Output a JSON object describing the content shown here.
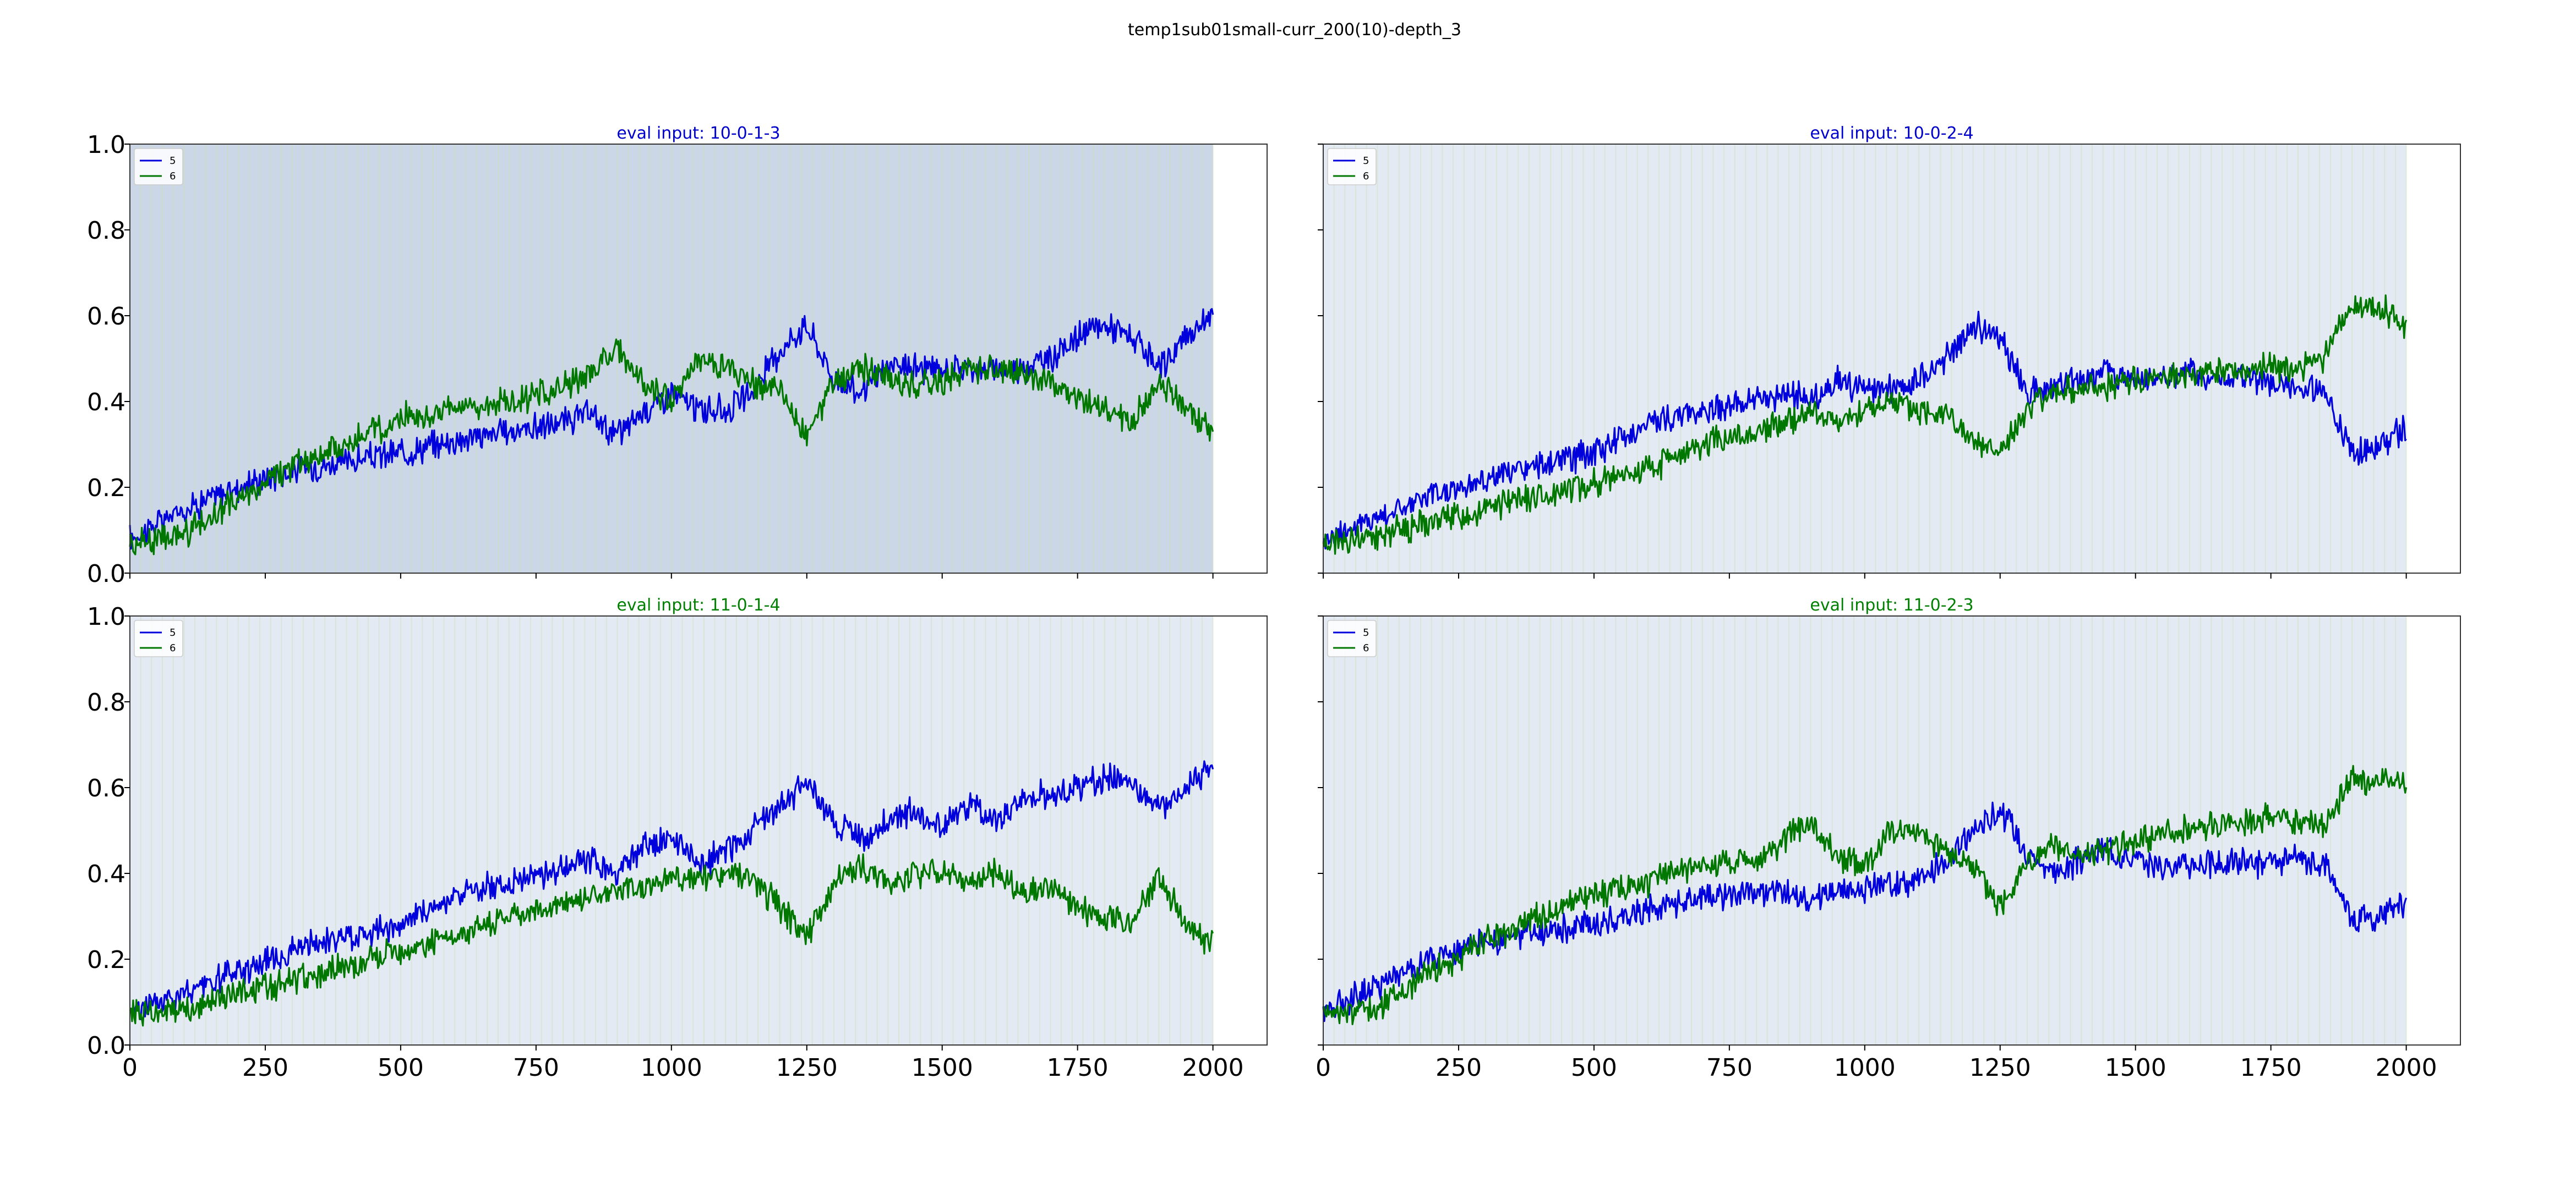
{
  "figure": {
    "title": "temp1sub01small-curr_200(10)-depth_3"
  },
  "colors": {
    "series_5": "#0000dd",
    "series_6": "#007700",
    "title_blue": "#0000cc",
    "title_green": "#008000",
    "shade_light": "#e4eaf4",
    "shade_dark": "#cbd7e6",
    "stripe": "#cce0b8",
    "axis": "#000000"
  },
  "chart_data": [
    {
      "type": "line",
      "title": "eval input: 10-0-1-3",
      "title_color": "#0000cc",
      "shading": "dark",
      "xlim": [
        0,
        2100
      ],
      "ylim": [
        0,
        1.0
      ],
      "xticks": [
        0,
        250,
        500,
        750,
        1000,
        1250,
        1500,
        1750,
        2000
      ],
      "yticks": [
        0.0,
        0.2,
        0.4,
        0.6,
        0.8,
        1.0
      ],
      "show_xticklabels": false,
      "show_yticklabels": true,
      "legend": "top-left",
      "x": [
        0,
        100,
        200,
        300,
        400,
        500,
        600,
        700,
        800,
        850,
        900,
        950,
        1000,
        1050,
        1100,
        1150,
        1200,
        1250,
        1300,
        1350,
        1400,
        1450,
        1500,
        1550,
        1600,
        1650,
        1700,
        1750,
        1800,
        1850,
        1900,
        1950,
        2000
      ],
      "series": [
        {
          "name": "5",
          "color": "#0000dd",
          "values": [
            0.08,
            0.15,
            0.2,
            0.24,
            0.26,
            0.28,
            0.31,
            0.33,
            0.35,
            0.37,
            0.32,
            0.38,
            0.42,
            0.38,
            0.38,
            0.42,
            0.52,
            0.58,
            0.45,
            0.42,
            0.48,
            0.48,
            0.47,
            0.48,
            0.47,
            0.48,
            0.5,
            0.55,
            0.58,
            0.55,
            0.47,
            0.55,
            0.6
          ]
        },
        {
          "name": "6",
          "color": "#007700",
          "values": [
            0.07,
            0.09,
            0.17,
            0.25,
            0.3,
            0.36,
            0.38,
            0.4,
            0.43,
            0.47,
            0.52,
            0.44,
            0.4,
            0.5,
            0.48,
            0.44,
            0.42,
            0.32,
            0.44,
            0.48,
            0.45,
            0.44,
            0.45,
            0.48,
            0.47,
            0.46,
            0.45,
            0.4,
            0.38,
            0.35,
            0.45,
            0.38,
            0.34
          ]
        }
      ]
    },
    {
      "type": "line",
      "title": "eval input: 10-0-2-4",
      "title_color": "#0000cc",
      "shading": "light",
      "xlim": [
        0,
        2100
      ],
      "ylim": [
        0,
        1.0
      ],
      "xticks": [
        0,
        250,
        500,
        750,
        1000,
        1250,
        1500,
        1750,
        2000
      ],
      "yticks": [
        0.0,
        0.2,
        0.4,
        0.6,
        0.8,
        1.0
      ],
      "show_xticklabels": false,
      "show_yticklabels": false,
      "legend": "top-left",
      "x": [
        0,
        100,
        200,
        300,
        400,
        500,
        600,
        700,
        800,
        850,
        900,
        950,
        1000,
        1050,
        1100,
        1150,
        1200,
        1250,
        1300,
        1350,
        1400,
        1450,
        1500,
        1550,
        1600,
        1650,
        1700,
        1750,
        1800,
        1850,
        1900,
        1950,
        2000
      ],
      "series": [
        {
          "name": "5",
          "color": "#0000dd",
          "values": [
            0.08,
            0.13,
            0.18,
            0.22,
            0.25,
            0.28,
            0.35,
            0.38,
            0.4,
            0.42,
            0.4,
            0.45,
            0.42,
            0.43,
            0.45,
            0.5,
            0.58,
            0.55,
            0.42,
            0.44,
            0.45,
            0.47,
            0.46,
            0.45,
            0.47,
            0.45,
            0.46,
            0.44,
            0.44,
            0.42,
            0.28,
            0.3,
            0.34
          ]
        },
        {
          "name": "6",
          "color": "#007700",
          "values": [
            0.07,
            0.09,
            0.12,
            0.15,
            0.18,
            0.21,
            0.24,
            0.3,
            0.33,
            0.35,
            0.38,
            0.35,
            0.38,
            0.4,
            0.38,
            0.38,
            0.3,
            0.28,
            0.38,
            0.42,
            0.43,
            0.44,
            0.45,
            0.46,
            0.46,
            0.47,
            0.47,
            0.48,
            0.48,
            0.5,
            0.62,
            0.62,
            0.58
          ]
        }
      ]
    },
    {
      "type": "line",
      "title": "eval input: 11-0-1-4",
      "title_color": "#008000",
      "shading": "light",
      "xlim": [
        0,
        2100
      ],
      "ylim": [
        0,
        1.0
      ],
      "xticks": [
        0,
        250,
        500,
        750,
        1000,
        1250,
        1500,
        1750,
        2000
      ],
      "yticks": [
        0.0,
        0.2,
        0.4,
        0.6,
        0.8,
        1.0
      ],
      "show_xticklabels": true,
      "show_yticklabels": true,
      "legend": "top-left",
      "x": [
        0,
        100,
        200,
        300,
        400,
        500,
        600,
        700,
        800,
        850,
        900,
        950,
        1000,
        1050,
        1100,
        1150,
        1200,
        1250,
        1300,
        1350,
        1400,
        1450,
        1500,
        1550,
        1600,
        1650,
        1700,
        1750,
        1800,
        1850,
        1900,
        1950,
        2000
      ],
      "series": [
        {
          "name": "5",
          "color": "#0000dd",
          "values": [
            0.08,
            0.12,
            0.17,
            0.22,
            0.25,
            0.28,
            0.35,
            0.38,
            0.41,
            0.43,
            0.4,
            0.46,
            0.48,
            0.42,
            0.45,
            0.5,
            0.55,
            0.62,
            0.52,
            0.48,
            0.52,
            0.55,
            0.5,
            0.56,
            0.52,
            0.58,
            0.58,
            0.6,
            0.62,
            0.62,
            0.55,
            0.6,
            0.65
          ]
        },
        {
          "name": "6",
          "color": "#007700",
          "values": [
            0.07,
            0.08,
            0.12,
            0.15,
            0.18,
            0.22,
            0.25,
            0.3,
            0.33,
            0.35,
            0.36,
            0.37,
            0.4,
            0.38,
            0.4,
            0.38,
            0.32,
            0.25,
            0.38,
            0.42,
            0.38,
            0.4,
            0.4,
            0.38,
            0.4,
            0.36,
            0.36,
            0.32,
            0.3,
            0.28,
            0.4,
            0.28,
            0.23
          ]
        }
      ]
    },
    {
      "type": "line",
      "title": "eval input: 11-0-2-3",
      "title_color": "#008000",
      "shading": "light",
      "xlim": [
        0,
        2100
      ],
      "ylim": [
        0,
        1.0
      ],
      "xticks": [
        0,
        250,
        500,
        750,
        1000,
        1250,
        1500,
        1750,
        2000
      ],
      "yticks": [
        0.0,
        0.2,
        0.4,
        0.6,
        0.8,
        1.0
      ],
      "show_xticklabels": true,
      "show_yticklabels": false,
      "legend": "top-left",
      "x": [
        0,
        100,
        200,
        300,
        400,
        500,
        600,
        700,
        800,
        850,
        900,
        950,
        1000,
        1050,
        1100,
        1150,
        1200,
        1250,
        1300,
        1350,
        1400,
        1450,
        1500,
        1550,
        1600,
        1650,
        1700,
        1750,
        1800,
        1850,
        1900,
        1950,
        2000
      ],
      "series": [
        {
          "name": "5",
          "color": "#0000dd",
          "values": [
            0.08,
            0.14,
            0.2,
            0.24,
            0.26,
            0.28,
            0.32,
            0.34,
            0.36,
            0.35,
            0.33,
            0.37,
            0.36,
            0.38,
            0.38,
            0.43,
            0.5,
            0.55,
            0.45,
            0.4,
            0.43,
            0.46,
            0.43,
            0.42,
            0.42,
            0.42,
            0.43,
            0.42,
            0.43,
            0.42,
            0.3,
            0.3,
            0.33
          ]
        },
        {
          "name": "6",
          "color": "#007700",
          "values": [
            0.07,
            0.09,
            0.17,
            0.24,
            0.3,
            0.35,
            0.38,
            0.42,
            0.43,
            0.48,
            0.52,
            0.44,
            0.42,
            0.5,
            0.5,
            0.45,
            0.42,
            0.33,
            0.43,
            0.46,
            0.44,
            0.45,
            0.47,
            0.5,
            0.5,
            0.52,
            0.52,
            0.53,
            0.52,
            0.51,
            0.62,
            0.62,
            0.6
          ]
        }
      ]
    }
  ]
}
